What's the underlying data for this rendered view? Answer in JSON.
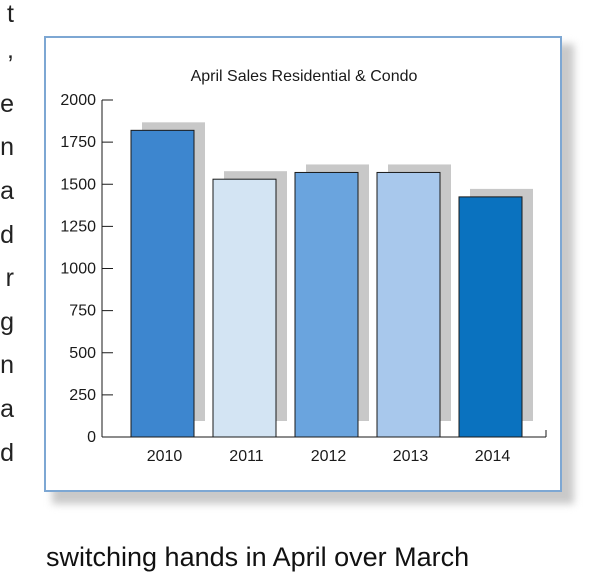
{
  "side_text": [
    "t",
    ",",
    "e",
    "n",
    "a",
    "d",
    "r",
    "g",
    "n",
    "a",
    "d"
  ],
  "bottom_text": "switching hands in April over March",
  "chart_data": {
    "type": "bar",
    "title": "April Sales Residential & Condo",
    "xlabel": "",
    "ylabel": "",
    "categories": [
      "2010",
      "2011",
      "2012",
      "2013",
      "2014"
    ],
    "values": [
      1820,
      1530,
      1570,
      1570,
      1425
    ],
    "bar_colors": [
      "#3d86cf",
      "#d3e4f3",
      "#6aa4de",
      "#a8c8ec",
      "#0a72bf"
    ],
    "shadow_color": "#c8c8c8",
    "ylim": [
      0,
      2000
    ],
    "yticks": [
      0,
      250,
      500,
      750,
      1000,
      1250,
      1500,
      1750,
      2000
    ],
    "grid": false,
    "legend": "none"
  }
}
